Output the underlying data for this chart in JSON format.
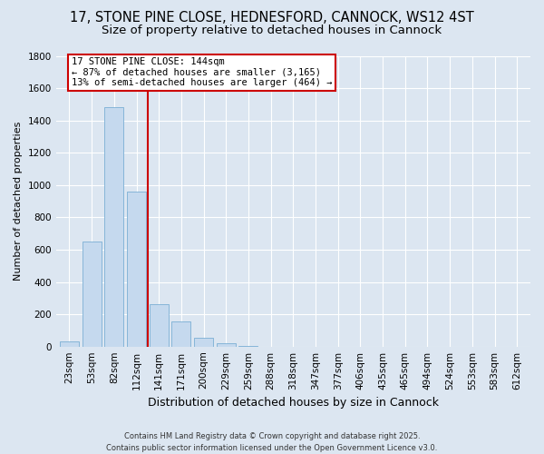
{
  "title_line1": "17, STONE PINE CLOSE, HEDNESFORD, CANNOCK, WS12 4ST",
  "title_line2": "Size of property relative to detached houses in Cannock",
  "xlabel": "Distribution of detached houses by size in Cannock",
  "ylabel": "Number of detached properties",
  "bar_labels": [
    "23sqm",
    "53sqm",
    "82sqm",
    "112sqm",
    "141sqm",
    "171sqm",
    "200sqm",
    "229sqm",
    "259sqm",
    "288sqm",
    "318sqm",
    "347sqm",
    "377sqm",
    "406sqm",
    "435sqm",
    "465sqm",
    "494sqm",
    "524sqm",
    "553sqm",
    "583sqm",
    "612sqm"
  ],
  "bar_values": [
    30,
    650,
    1480,
    960,
    260,
    155,
    55,
    20,
    5,
    1,
    0,
    0,
    0,
    0,
    0,
    0,
    0,
    0,
    0,
    0,
    0
  ],
  "bar_color": "#c5d9ee",
  "bar_edge_color": "#7aafd4",
  "vline_color": "#cc0000",
  "annotation_text": "17 STONE PINE CLOSE: 144sqm\n← 87% of detached houses are smaller (3,165)\n13% of semi-detached houses are larger (464) →",
  "annotation_box_color": "#cc0000",
  "ylim": [
    0,
    1800
  ],
  "yticks": [
    0,
    200,
    400,
    600,
    800,
    1000,
    1200,
    1400,
    1600,
    1800
  ],
  "background_color": "#dce6f1",
  "footer_line1": "Contains HM Land Registry data © Crown copyright and database right 2025.",
  "footer_line2": "Contains public sector information licensed under the Open Government Licence v3.0.",
  "title_fontsize": 10.5,
  "subtitle_fontsize": 9.5,
  "ylabel_fontsize": 8,
  "xlabel_fontsize": 9,
  "tick_fontsize": 7.5,
  "annotation_fontsize": 7.5,
  "footer_fontsize": 6
}
